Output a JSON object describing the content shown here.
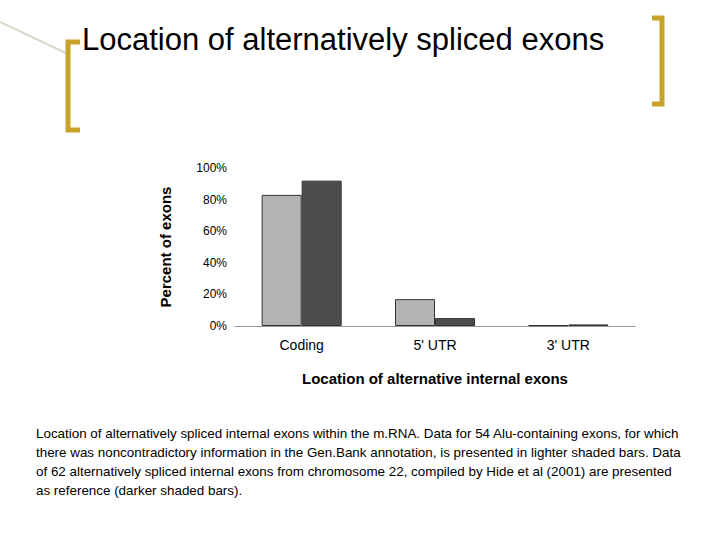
{
  "chart_data": {
    "type": "bar",
    "title": "Location of alternatively spliced exons",
    "caption": "Location of alternatively spliced internal exons within the m.RNA. Data for 54 Alu-containing exons, for which there was noncontradictory information in the Gen.Bank annotation, is presented in lighter shaded bars. Data of 62 alternatively spliced internal exons from chromosome 22, compiled by Hide et al (2001) are presented as reference (darker shaded bars).",
    "x_label": "Location of alternative internal exons",
    "y_label": "Percent of exons",
    "categories": [
      "Coding",
      "5' UTR",
      "3' UTR"
    ],
    "series": [
      {
        "color": "#b3b3b3",
        "values": [
          83,
          17,
          0.5
        ]
      },
      {
        "color": "#4d4d4d",
        "values": [
          92,
          5,
          1
        ]
      }
    ],
    "ylim": [
      0,
      100
    ],
    "yticks": [
      {
        "value": 0,
        "label": "0%"
      },
      {
        "value": 20,
        "label": "20%"
      },
      {
        "value": 40,
        "label": "40%"
      },
      {
        "value": 60,
        "label": "60%"
      },
      {
        "value": 80,
        "label": "80%"
      },
      {
        "value": 100,
        "label": "100%"
      }
    ],
    "grid": false
  }
}
